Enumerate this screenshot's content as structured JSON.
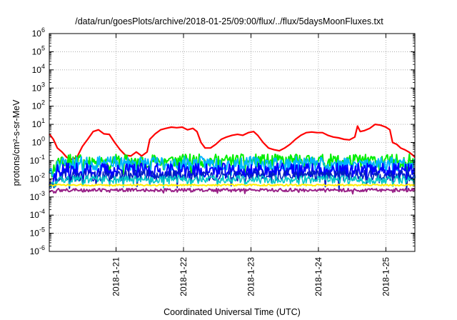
{
  "chart_data": {
    "type": "line",
    "title": "/data/run/goesPlots/archive/2018-01-25/09:00/flux/../flux/5daysMoonFluxes.txt",
    "xlabel": "Coordinated Universal Time (UTC)",
    "ylabel": "protons/cm²-s-sr-MeV",
    "y_scale": "log",
    "ylim": [
      1e-06,
      1000000.0
    ],
    "xlim": [
      -0.99,
      4.43
    ],
    "x_units": "days relative to 2018-1-21 00:00 UTC",
    "grid": true,
    "y_ticks": [
      {
        "base": "10",
        "exp": "-6"
      },
      {
        "base": "10",
        "exp": "-5"
      },
      {
        "base": "10",
        "exp": "-4"
      },
      {
        "base": "10",
        "exp": "-3"
      },
      {
        "base": "10",
        "exp": "-2"
      },
      {
        "base": "10",
        "exp": "-1"
      },
      {
        "base": "10",
        "exp": "0"
      },
      {
        "base": "10",
        "exp": "1"
      },
      {
        "base": "10",
        "exp": "2"
      },
      {
        "base": "10",
        "exp": "3"
      },
      {
        "base": "10",
        "exp": "4"
      },
      {
        "base": "10",
        "exp": "5"
      },
      {
        "base": "10",
        "exp": "6"
      }
    ],
    "x_ticks": [
      {
        "label": "2018-1-21",
        "day": 0
      },
      {
        "label": "2018-1-22",
        "day": 1
      },
      {
        "label": "2018-1-23",
        "day": 2
      },
      {
        "label": "2018-1-24",
        "day": 3
      },
      {
        "label": "2018-1-25",
        "day": 4
      }
    ],
    "series": [
      {
        "color": "#ff0000",
        "width": 2.2,
        "points": [
          [
            -0.99,
            3
          ],
          [
            -0.93,
            1.5
          ],
          [
            -0.87,
            0.5
          ],
          [
            -0.8,
            0.3
          ],
          [
            -0.73,
            0.15
          ],
          [
            -0.66,
            0.12
          ],
          [
            -0.58,
            0.15
          ],
          [
            -0.5,
            0.6
          ],
          [
            -0.42,
            1.5
          ],
          [
            -0.34,
            4
          ],
          [
            -0.26,
            5
          ],
          [
            -0.18,
            3
          ],
          [
            -0.1,
            2.8
          ],
          [
            -0.02,
            1
          ],
          [
            0.06,
            0.4
          ],
          [
            0.14,
            0.2
          ],
          [
            0.22,
            0.18
          ],
          [
            0.3,
            0.3
          ],
          [
            0.38,
            0.18
          ],
          [
            0.46,
            0.3
          ],
          [
            0.5,
            1.5
          ],
          [
            0.58,
            3
          ],
          [
            0.66,
            5
          ],
          [
            0.74,
            6
          ],
          [
            0.82,
            7
          ],
          [
            0.9,
            6.5
          ],
          [
            0.98,
            7
          ],
          [
            1.06,
            5
          ],
          [
            1.14,
            6
          ],
          [
            1.2,
            4
          ],
          [
            1.26,
            1
          ],
          [
            1.32,
            0.5
          ],
          [
            1.4,
            0.5
          ],
          [
            1.48,
            0.8
          ],
          [
            1.56,
            1.5
          ],
          [
            1.64,
            2
          ],
          [
            1.72,
            2.5
          ],
          [
            1.8,
            2.8
          ],
          [
            1.88,
            2.5
          ],
          [
            1.96,
            3.5
          ],
          [
            2.04,
            4
          ],
          [
            2.1,
            2.5
          ],
          [
            2.18,
            1
          ],
          [
            2.26,
            0.5
          ],
          [
            2.34,
            0.4
          ],
          [
            2.42,
            0.35
          ],
          [
            2.5,
            0.5
          ],
          [
            2.58,
            0.8
          ],
          [
            2.66,
            1.5
          ],
          [
            2.74,
            2.5
          ],
          [
            2.82,
            3.5
          ],
          [
            2.9,
            3.8
          ],
          [
            2.98,
            3.5
          ],
          [
            3.06,
            3.5
          ],
          [
            3.14,
            2.5
          ],
          [
            3.22,
            2
          ],
          [
            3.3,
            1.8
          ],
          [
            3.38,
            1.5
          ],
          [
            3.46,
            1.4
          ],
          [
            3.54,
            2
          ],
          [
            3.58,
            8
          ],
          [
            3.62,
            4
          ],
          [
            3.68,
            4.5
          ],
          [
            3.76,
            6
          ],
          [
            3.84,
            10
          ],
          [
            3.92,
            9
          ],
          [
            4.0,
            7
          ],
          [
            4.06,
            5
          ],
          [
            4.1,
            1
          ],
          [
            4.16,
            0.8
          ],
          [
            4.22,
            0.5
          ],
          [
            4.28,
            0.4
          ],
          [
            4.34,
            0.3
          ],
          [
            4.4,
            0.2
          ],
          [
            4.43,
            0.15
          ]
        ]
      },
      {
        "color": "#00ee00",
        "width": 2,
        "base": 0.1,
        "amp": 0.12,
        "dip": 0.35,
        "seed": 11
      },
      {
        "color": "#00b4ff",
        "width": 2,
        "base": 0.07,
        "amp": 0.13,
        "dip": 0.25,
        "seed": 23
      },
      {
        "color": "#0000ff",
        "width": 2,
        "base": 0.028,
        "amp": 0.14,
        "dip": 0.35,
        "seed": 37
      },
      {
        "color": "#0020c0",
        "width": 1.6,
        "base": 0.015,
        "amp": 0.1,
        "dip": 0.3,
        "seed": 49
      },
      {
        "color": "#00c8c8",
        "width": 1.6,
        "base": 0.009,
        "amp": 0.08,
        "dip": 0.15,
        "seed": 61
      },
      {
        "color": "#ffee00",
        "width": 2,
        "base": 0.0045,
        "amp": 0.015,
        "dip": 0.0,
        "seed": 73
      },
      {
        "color": "#992288",
        "width": 2,
        "base": 0.0024,
        "amp": 0.03,
        "dip": 0.06,
        "seed": 89
      }
    ]
  }
}
